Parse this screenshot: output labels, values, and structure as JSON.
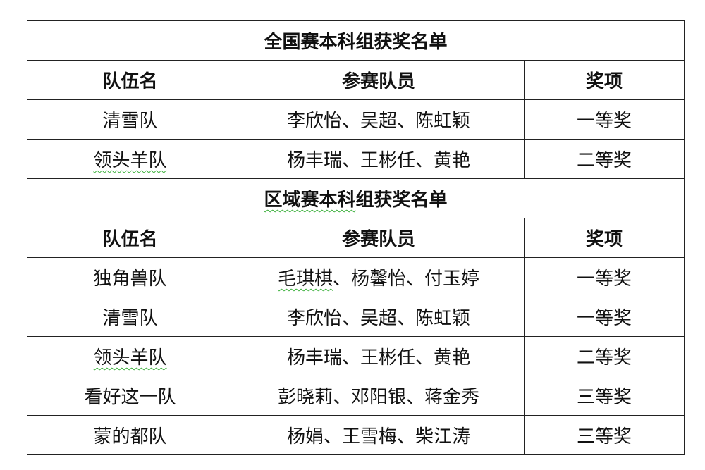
{
  "sections": [
    {
      "title": {
        "text": "全国赛本科组获奖名单",
        "wavy_chars": 0
      },
      "headers": [
        "队伍名",
        "参赛队员",
        "奖项"
      ],
      "rows": [
        [
          {
            "text": "清雪队",
            "wavy_chars": 0
          },
          {
            "text": "李欣怡、吴超、陈虹颖",
            "wavy_chars": 0
          },
          {
            "text": "一等奖",
            "wavy_chars": 0
          }
        ],
        [
          {
            "text": "领头羊队",
            "wavy_chars": 4
          },
          {
            "text": "杨丰瑞、王彬任、黄艳",
            "wavy_chars": 0
          },
          {
            "text": "二等奖",
            "wavy_chars": 0
          }
        ]
      ]
    },
    {
      "title": {
        "text": "区域赛本科组获奖名单",
        "wavy_chars": 5
      },
      "headers": [
        "队伍名",
        "参赛队员",
        "奖项"
      ],
      "rows": [
        [
          {
            "text": "独角兽队",
            "wavy_chars": 0
          },
          {
            "text": "毛琪棋、杨馨怡、付玉婷",
            "wavy_chars": 3
          },
          {
            "text": "一等奖",
            "wavy_chars": 0
          }
        ],
        [
          {
            "text": "清雪队",
            "wavy_chars": 0
          },
          {
            "text": "李欣怡、吴超、陈虹颖",
            "wavy_chars": 0
          },
          {
            "text": "一等奖",
            "wavy_chars": 0
          }
        ],
        [
          {
            "text": "领头羊队",
            "wavy_chars": 4
          },
          {
            "text": "杨丰瑞、王彬任、黄艳",
            "wavy_chars": 0
          },
          {
            "text": "二等奖",
            "wavy_chars": 0
          }
        ],
        [
          {
            "text": "看好这一队",
            "wavy_chars": 0
          },
          {
            "text": "彭晓莉、邓阳银、蒋金秀",
            "wavy_chars": 0
          },
          {
            "text": "三等奖",
            "wavy_chars": 0
          }
        ],
        [
          {
            "text": "蒙的都队",
            "wavy_chars": 0
          },
          {
            "text": "杨娟、王雪梅、柴江涛",
            "wavy_chars": 0
          },
          {
            "text": "三等奖",
            "wavy_chars": 0
          }
        ]
      ]
    }
  ]
}
